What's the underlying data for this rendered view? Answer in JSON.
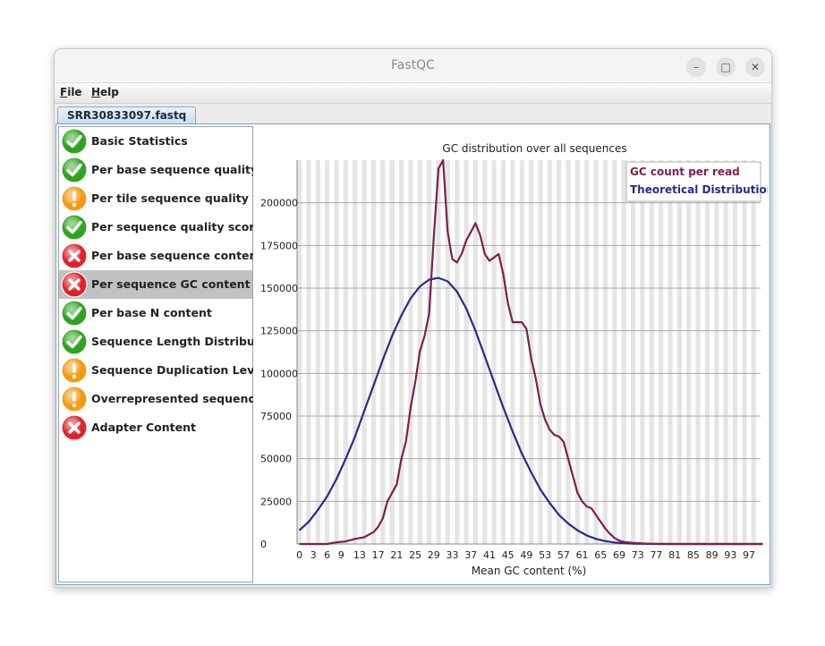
{
  "window": {
    "title": "FastQC",
    "controls": {
      "minimize": "–",
      "maximize": "□",
      "close": "✕"
    }
  },
  "menu": {
    "file": "File",
    "help": "Help"
  },
  "tab": {
    "label": "SRR30833097.fastq"
  },
  "modules": [
    {
      "label": "Basic Statistics",
      "status": "pass",
      "icon": "check-icon"
    },
    {
      "label": "Per base sequence quality",
      "status": "pass",
      "icon": "check-icon"
    },
    {
      "label": "Per tile sequence quality",
      "status": "warn",
      "icon": "warning-icon"
    },
    {
      "label": "Per sequence quality scores",
      "status": "pass",
      "icon": "check-icon"
    },
    {
      "label": "Per base sequence content",
      "status": "fail",
      "icon": "cross-icon"
    },
    {
      "label": "Per sequence GC content",
      "status": "fail",
      "icon": "cross-icon",
      "selected": true
    },
    {
      "label": "Per base N content",
      "status": "pass",
      "icon": "check-icon"
    },
    {
      "label": "Sequence Length Distribution",
      "status": "pass",
      "icon": "check-icon"
    },
    {
      "label": "Sequence Duplication Levels",
      "status": "warn",
      "icon": "warning-icon"
    },
    {
      "label": "Overrepresented sequences",
      "status": "warn",
      "icon": "warning-icon"
    },
    {
      "label": "Adapter Content",
      "status": "fail",
      "icon": "cross-icon"
    }
  ],
  "status_colors": {
    "pass": "#2ea31f",
    "warn": "#f39a12",
    "fail": "#e0232a"
  },
  "chart_data": {
    "type": "line",
    "title": "GC distribution over all sequences",
    "xlabel": "Mean GC content (%)",
    "ylabel": "",
    "xlim": [
      0,
      100
    ],
    "ylim": [
      0,
      225000
    ],
    "x_tick_labels": [
      "0",
      "3",
      "6",
      "9",
      "13",
      "17",
      "21",
      "25",
      "29",
      "33",
      "37",
      "41",
      "45",
      "49",
      "53",
      "57",
      "61",
      "65",
      "69",
      "73",
      "77",
      "81",
      "85",
      "89",
      "93",
      "97"
    ],
    "y_tick_labels": [
      "0",
      "25000",
      "50000",
      "75000",
      "100000",
      "125000",
      "150000",
      "175000",
      "200000"
    ],
    "y_tick_values": [
      0,
      25000,
      50000,
      75000,
      100000,
      125000,
      150000,
      175000,
      200000
    ],
    "grid": true,
    "legend_position": "top-right",
    "series": [
      {
        "name": "GC count per read",
        "color": "#7f1f4f",
        "points": [
          [
            0,
            0
          ],
          [
            2,
            0
          ],
          [
            4,
            0
          ],
          [
            6,
            0
          ],
          [
            8,
            1000
          ],
          [
            10,
            1500
          ],
          [
            12,
            3000
          ],
          [
            14,
            4000
          ],
          [
            16,
            7000
          ],
          [
            17,
            10000
          ],
          [
            18,
            15000
          ],
          [
            19,
            25000
          ],
          [
            20,
            30000
          ],
          [
            21,
            35000
          ],
          [
            22,
            50000
          ],
          [
            23,
            60000
          ],
          [
            24,
            80000
          ],
          [
            25,
            95000
          ],
          [
            26,
            113000
          ],
          [
            27,
            122000
          ],
          [
            28,
            135000
          ],
          [
            29,
            180000
          ],
          [
            30,
            220000
          ],
          [
            31,
            225000
          ],
          [
            32,
            183000
          ],
          [
            33,
            167000
          ],
          [
            34,
            165000
          ],
          [
            35,
            170000
          ],
          [
            36,
            178000
          ],
          [
            37,
            183000
          ],
          [
            38,
            188000
          ],
          [
            39,
            181000
          ],
          [
            40,
            170000
          ],
          [
            41,
            166000
          ],
          [
            42,
            168000
          ],
          [
            43,
            170000
          ],
          [
            44,
            158000
          ],
          [
            45,
            141000
          ],
          [
            46,
            130000
          ],
          [
            47,
            130000
          ],
          [
            48,
            130000
          ],
          [
            49,
            126000
          ],
          [
            50,
            109000
          ],
          [
            51,
            97000
          ],
          [
            52,
            82000
          ],
          [
            53,
            73000
          ],
          [
            54,
            67000
          ],
          [
            55,
            64000
          ],
          [
            56,
            63000
          ],
          [
            57,
            60000
          ],
          [
            58,
            50000
          ],
          [
            59,
            40000
          ],
          [
            60,
            30000
          ],
          [
            61,
            25000
          ],
          [
            62,
            22000
          ],
          [
            63,
            21000
          ],
          [
            64,
            17000
          ],
          [
            65,
            13000
          ],
          [
            66,
            9000
          ],
          [
            67,
            6000
          ],
          [
            68,
            3500
          ],
          [
            69,
            2000
          ],
          [
            70,
            1200
          ],
          [
            72,
            700
          ],
          [
            74,
            300
          ],
          [
            76,
            100
          ],
          [
            80,
            0
          ],
          [
            90,
            0
          ],
          [
            100,
            0
          ]
        ]
      },
      {
        "name": "Theoretical Distribution",
        "color": "#2a2a8a",
        "points": [
          [
            0,
            8000
          ],
          [
            2,
            13000
          ],
          [
            4,
            20000
          ],
          [
            6,
            28000
          ],
          [
            8,
            38000
          ],
          [
            10,
            50000
          ],
          [
            12,
            63000
          ],
          [
            14,
            78000
          ],
          [
            16,
            93000
          ],
          [
            18,
            108000
          ],
          [
            20,
            122000
          ],
          [
            22,
            134000
          ],
          [
            24,
            144000
          ],
          [
            26,
            151000
          ],
          [
            28,
            155000
          ],
          [
            30,
            156000
          ],
          [
            32,
            154000
          ],
          [
            34,
            148000
          ],
          [
            36,
            138000
          ],
          [
            38,
            125000
          ],
          [
            40,
            110000
          ],
          [
            42,
            95000
          ],
          [
            44,
            80000
          ],
          [
            46,
            66000
          ],
          [
            48,
            53000
          ],
          [
            50,
            42000
          ],
          [
            52,
            32000
          ],
          [
            54,
            24000
          ],
          [
            56,
            17000
          ],
          [
            58,
            12000
          ],
          [
            60,
            8000
          ],
          [
            62,
            5000
          ],
          [
            64,
            3000
          ],
          [
            66,
            1700
          ],
          [
            68,
            900
          ],
          [
            70,
            400
          ],
          [
            72,
            200
          ],
          [
            76,
            50
          ],
          [
            80,
            0
          ],
          [
            90,
            0
          ],
          [
            100,
            0
          ]
        ]
      }
    ]
  }
}
